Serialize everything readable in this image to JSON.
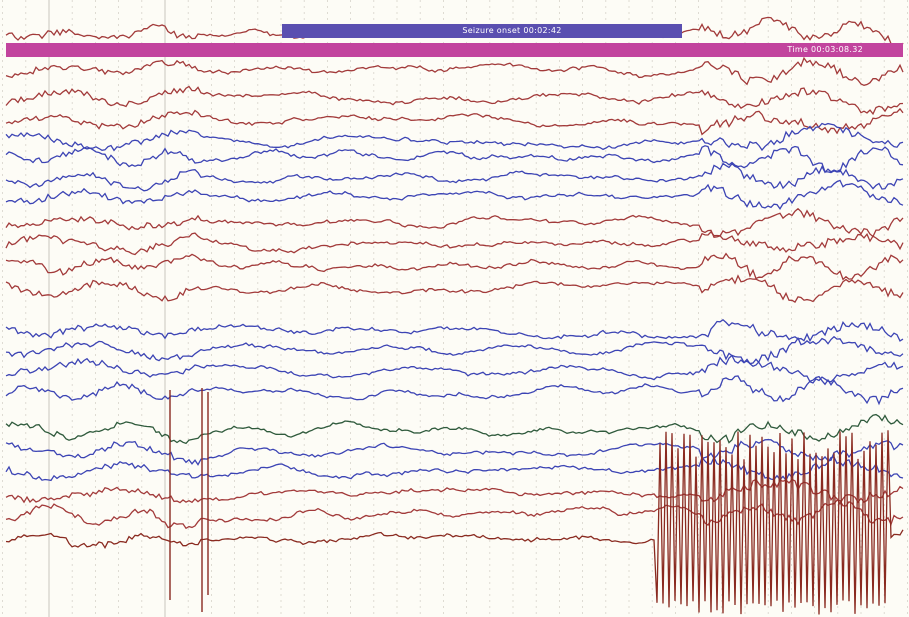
{
  "viewer": {
    "events": {
      "seizure_label": "Seizure onset 00:02:42",
      "time_label": "Time 00:03:08.32"
    },
    "grid": {
      "major_lines": 8,
      "minor_per_major": 5
    },
    "colors": {
      "background": "#fdfcf6",
      "grid_major": "#c9c6bd",
      "grid_minor": "#d6d3ca",
      "trace_red": "#a23a3a",
      "trace_blue": "#3c44b4",
      "trace_green": "#2f5a3c",
      "trace_dark_red": "#8a2a20",
      "seizure_bar": "#5a4fb0",
      "time_bar": "#c2449e"
    },
    "channel_groups": [
      "red",
      "red",
      "red",
      "red",
      "blue",
      "blue",
      "blue",
      "blue",
      "red",
      "red",
      "red",
      "red",
      "blue",
      "blue",
      "blue",
      "blue",
      "green",
      "blue",
      "blue",
      "red",
      "red",
      "dark_red"
    ]
  }
}
